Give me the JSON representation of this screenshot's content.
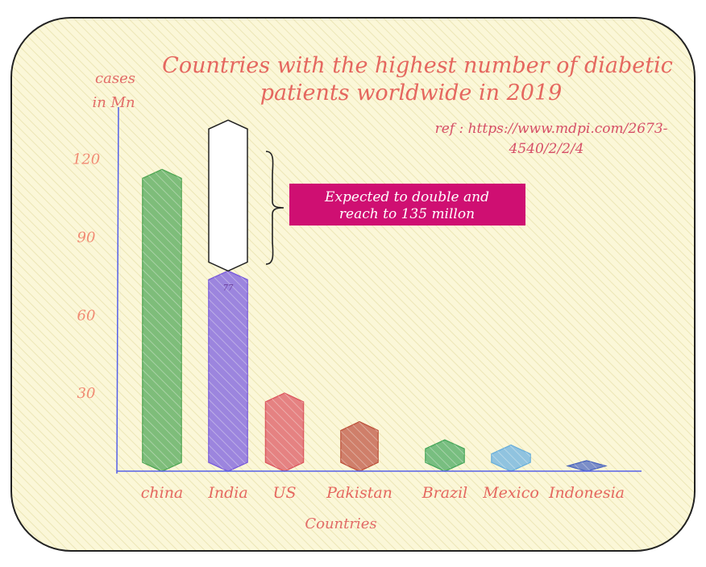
{
  "chart_data": {
    "type": "bar",
    "title": "Countries with the highest number of diabetic patients worldwide in 2019",
    "reference": "ref : https://www.mdpi.com/2673-4540/2/2/4",
    "y_unit": "cases in Mn",
    "xlabel": "Countries",
    "ylim": [
      0,
      140
    ],
    "yticks": [
      30,
      60,
      90,
      120
    ],
    "categories": [
      "china",
      "India",
      "US",
      "Pakistan",
      "Brazil",
      "Mexico",
      "Indonesia"
    ],
    "values": [
      116,
      77,
      30,
      19,
      12,
      10,
      4
    ],
    "projection": {
      "category": "India",
      "value": 135,
      "annotation": "Expected to double and reach to 135 millon"
    },
    "value_labels": {
      "India": "77"
    },
    "colors": {
      "china": "#43a047",
      "India": "#6f4fd8",
      "US": "#d94b52",
      "Pakistan": "#b9472f",
      "Brazil": "#3aa14f",
      "Mexico": "#5ea9d9",
      "Indonesia": "#3f5bb8",
      "projection": "#ffffff",
      "callout": "#cf0f72",
      "axis": "#5560e8",
      "title": "#e5675f"
    }
  }
}
